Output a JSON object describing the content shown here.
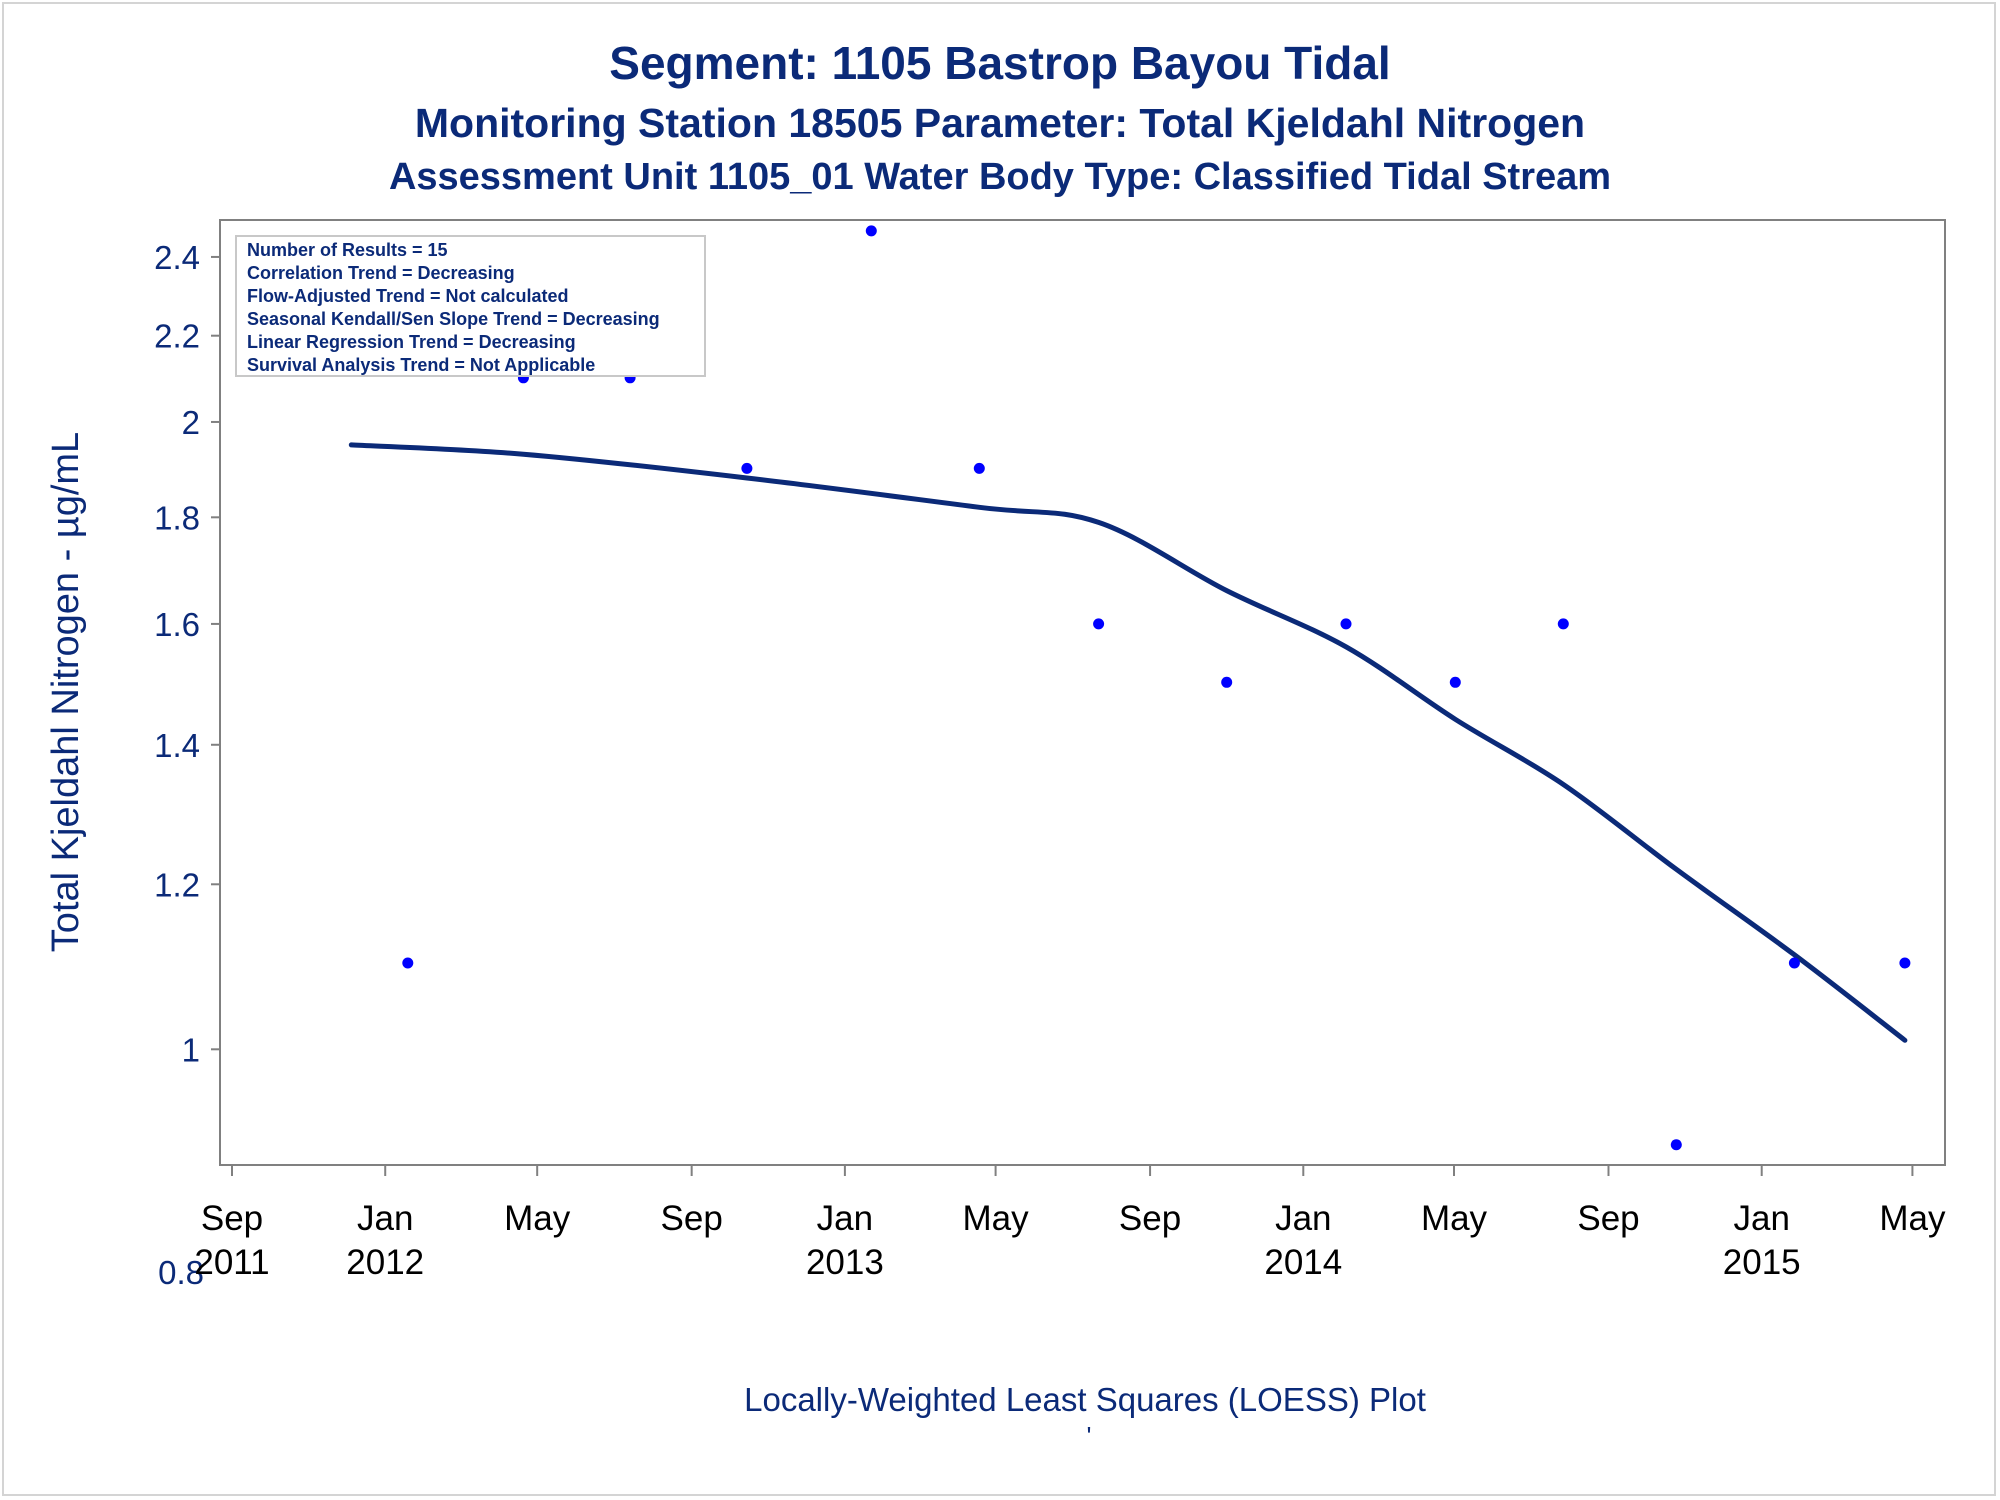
{
  "header": {
    "title": "Segment: 1105  Bastrop Bayou Tidal",
    "subtitle": "Monitoring Station 18505 Parameter: Total Kjeldahl Nitrogen",
    "subtitle2": "Assessment Unit 1105_01   Water Body Type: Classified Tidal Stream"
  },
  "stats_box": {
    "lines": [
      "Number of Results = 15",
      "Correlation Trend = Decreasing",
      "Flow-Adjusted Trend = Not calculated",
      "Seasonal Kendall/Sen Slope Trend = Decreasing",
      "Linear Regression Trend = Decreasing",
      "Survival Analysis Trend = Not Applicable"
    ]
  },
  "footer": {
    "caption": "Locally-Weighted Least Squares (LOESS) Plot",
    "mark": "'"
  },
  "colors": {
    "points": "#0000ff",
    "line": "#0b2a78",
    "text": "#0b2a78",
    "axis": "#808080"
  },
  "chart_data": {
    "type": "scatter",
    "xlabel": "",
    "ylabel": "Total Kjeldahl Nitrogen -  µg/mL",
    "y_scale": "log",
    "xlim": [
      "2011-09-01",
      "2015-05-15"
    ],
    "ylim": [
      0.88,
      2.5
    ],
    "y_ticks": [
      {
        "value": 0.8,
        "label": "0.8"
      },
      {
        "value": 1.0,
        "label": "1"
      },
      {
        "value": 1.2,
        "label": "1.2"
      },
      {
        "value": 1.4,
        "label": "1.4"
      },
      {
        "value": 1.6,
        "label": "1.6"
      },
      {
        "value": 1.8,
        "label": "1.8"
      },
      {
        "value": 2.0,
        "label": "2"
      },
      {
        "value": 2.2,
        "label": "2.2"
      },
      {
        "value": 2.4,
        "label": "2.4"
      }
    ],
    "x_ticks": [
      {
        "date": "2011-09-01",
        "month": "Sep",
        "year": "2011"
      },
      {
        "date": "2012-01-01",
        "month": "Jan",
        "year": "2012"
      },
      {
        "date": "2012-05-01",
        "month": "May",
        "year": ""
      },
      {
        "date": "2012-09-01",
        "month": "Sep",
        "year": ""
      },
      {
        "date": "2013-01-01",
        "month": "Jan",
        "year": "2013"
      },
      {
        "date": "2013-05-01",
        "month": "May",
        "year": ""
      },
      {
        "date": "2013-09-01",
        "month": "Sep",
        "year": ""
      },
      {
        "date": "2014-01-01",
        "month": "Jan",
        "year": "2014"
      },
      {
        "date": "2014-05-01",
        "month": "May",
        "year": ""
      },
      {
        "date": "2014-09-01",
        "month": "Sep",
        "year": ""
      },
      {
        "date": "2015-01-01",
        "month": "Jan",
        "year": "2015"
      },
      {
        "date": "2015-05-01",
        "month": "May",
        "year": ""
      }
    ],
    "series": [
      {
        "type": "scatter",
        "points": [
          {
            "x": "2011-12-05",
            "y": 2.2
          },
          {
            "x": "2012-01-19",
            "y": 1.1
          },
          {
            "x": "2012-04-20",
            "y": 2.1
          },
          {
            "x": "2012-07-14",
            "y": 2.1
          },
          {
            "x": "2012-10-15",
            "y": 1.9
          },
          {
            "x": "2013-01-22",
            "y": 2.47
          },
          {
            "x": "2013-04-18",
            "y": 1.9
          },
          {
            "x": "2013-07-22",
            "y": 1.6
          },
          {
            "x": "2013-11-01",
            "y": 1.5
          },
          {
            "x": "2014-02-04",
            "y": 1.6
          },
          {
            "x": "2014-05-02",
            "y": 1.5
          },
          {
            "x": "2014-07-27",
            "y": 1.6
          },
          {
            "x": "2014-10-25",
            "y": 0.9
          },
          {
            "x": "2015-01-27",
            "y": 1.1
          },
          {
            "x": "2015-04-25",
            "y": 1.1
          }
        ]
      },
      {
        "type": "line",
        "points": [
          {
            "x": "2011-12-05",
            "y": 1.95
          },
          {
            "x": "2012-04-20",
            "y": 1.93
          },
          {
            "x": "2012-10-15",
            "y": 1.88
          },
          {
            "x": "2013-04-18",
            "y": 1.82
          },
          {
            "x": "2013-07-22",
            "y": 1.79
          },
          {
            "x": "2013-11-01",
            "y": 1.66
          },
          {
            "x": "2014-02-04",
            "y": 1.56
          },
          {
            "x": "2014-05-02",
            "y": 1.44
          },
          {
            "x": "2014-07-27",
            "y": 1.34
          },
          {
            "x": "2014-10-25",
            "y": 1.22
          },
          {
            "x": "2015-01-27",
            "y": 1.11
          },
          {
            "x": "2015-04-25",
            "y": 1.01
          }
        ]
      }
    ]
  }
}
